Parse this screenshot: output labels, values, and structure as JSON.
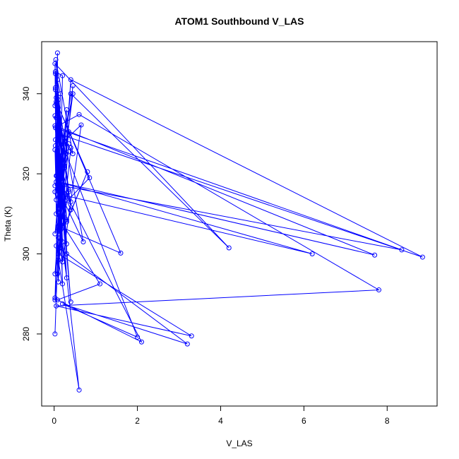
{
  "chart_data": {
    "type": "line",
    "title": "ATOM1 Southbound V_LAS",
    "xlabel": "V_LAS",
    "ylabel": "Theta (K)",
    "xlim": [
      -0.3,
      9.2
    ],
    "ylim": [
      262,
      353
    ],
    "xticks": [
      0,
      2,
      4,
      6,
      8
    ],
    "yticks": [
      280,
      300,
      320,
      340
    ],
    "grid": false,
    "series": [
      {
        "color": "#0000ff",
        "marker": "open-circle",
        "points": [
          [
            0.02,
            280.0
          ],
          [
            0.1,
            304.0
          ],
          [
            0.08,
            350.2
          ],
          [
            0.05,
            318.0
          ],
          [
            0.6,
            266.0
          ],
          [
            0.1,
            298.5
          ],
          [
            0.35,
            327.5
          ],
          [
            0.02,
            288.5
          ],
          [
            0.15,
            340.0
          ],
          [
            0.03,
            345.5
          ],
          [
            0.2,
            344.5
          ],
          [
            0.12,
            305.0
          ],
          [
            0.03,
            328.5
          ],
          [
            0.18,
            310.5
          ],
          [
            0.08,
            295.0
          ],
          [
            0.25,
            322.0
          ],
          [
            0.05,
            337.5
          ],
          [
            0.3,
            300.0
          ],
          [
            0.04,
            348.5
          ],
          [
            0.45,
            325.0
          ],
          [
            0.1,
            332.0
          ],
          [
            0.6,
            334.8
          ],
          [
            7.8,
            291.0
          ],
          [
            0.05,
            287.0
          ],
          [
            3.3,
            279.5
          ],
          [
            0.1,
            300.0
          ],
          [
            0.4,
            343.5
          ],
          [
            8.85,
            299.2
          ],
          [
            0.1,
            330.0
          ],
          [
            2.0,
            279.2
          ],
          [
            0.2,
            287.5
          ],
          [
            3.2,
            277.5
          ],
          [
            0.05,
            302.0
          ],
          [
            0.8,
            320.5
          ],
          [
            0.3,
            308.0
          ],
          [
            0.03,
            341.5
          ],
          [
            0.7,
            303.0
          ],
          [
            0.15,
            315.0
          ],
          [
            0.02,
            332.0
          ],
          [
            7.7,
            299.7
          ],
          [
            0.1,
            318.0
          ],
          [
            6.2,
            300.0
          ],
          [
            0.3,
            314.5
          ],
          [
            2.1,
            278.0
          ],
          [
            0.08,
            288.5
          ],
          [
            1.1,
            292.5
          ],
          [
            0.05,
            310.0
          ],
          [
            0.02,
            347.5
          ],
          [
            4.2,
            301.5
          ],
          [
            0.4,
            340.0
          ],
          [
            0.15,
            321.0
          ],
          [
            0.4,
            288.0
          ],
          [
            0.03,
            331.5
          ],
          [
            8.35,
            301.0
          ],
          [
            0.2,
            317.0
          ],
          [
            0.45,
            342.0
          ],
          [
            0.1,
            307.0
          ],
          [
            1.6,
            300.2
          ],
          [
            0.05,
            338.0
          ],
          [
            0.85,
            319.0
          ],
          [
            0.2,
            312.0
          ],
          [
            0.02,
            305.0
          ],
          [
            0.3,
            336.0
          ],
          [
            0.1,
            293.0
          ],
          [
            0.02,
            326.0
          ],
          [
            0.65,
            332.2
          ],
          [
            0.2,
            298.0
          ],
          [
            0.03,
            345.0
          ],
          [
            0.4,
            311.0
          ],
          [
            0.05,
            319.5
          ],
          [
            0.25,
            328.0
          ],
          [
            0.02,
            337.0
          ],
          [
            0.35,
            315.5
          ],
          [
            0.1,
            310.5
          ],
          [
            0.02,
            289.0
          ],
          [
            0.4,
            326.5
          ],
          [
            0.15,
            301.5
          ],
          [
            0.03,
            341.0
          ],
          [
            0.2,
            292.5
          ],
          [
            0.08,
            343.5
          ],
          [
            0.3,
            308.5
          ],
          [
            0.05,
            334.0
          ],
          [
            0.25,
            321.5
          ],
          [
            0.02,
            317.0
          ],
          [
            0.35,
            330.5
          ],
          [
            0.1,
            306.5
          ],
          [
            0.05,
            339.0
          ],
          [
            0.3,
            294.0
          ],
          [
            0.02,
            315.5
          ],
          [
            0.15,
            324.5
          ],
          [
            0.45,
            340.0
          ],
          [
            0.1,
            311.5
          ],
          [
            0.25,
            329.0
          ],
          [
            0.02,
            295.0
          ],
          [
            0.35,
            316.0
          ],
          [
            0.1,
            336.5
          ],
          [
            0.2,
            303.0
          ],
          [
            0.03,
            327.0
          ],
          [
            0.4,
            313.0
          ],
          [
            0.06,
            319.5
          ],
          [
            0.25,
            309.0
          ],
          [
            0.02,
            334.5
          ],
          [
            0.15,
            320.0
          ],
          [
            0.3,
            302.5
          ],
          [
            0.1,
            338.5
          ],
          [
            0.05,
            313.5
          ],
          [
            0.35,
            325.5
          ]
        ]
      }
    ]
  }
}
